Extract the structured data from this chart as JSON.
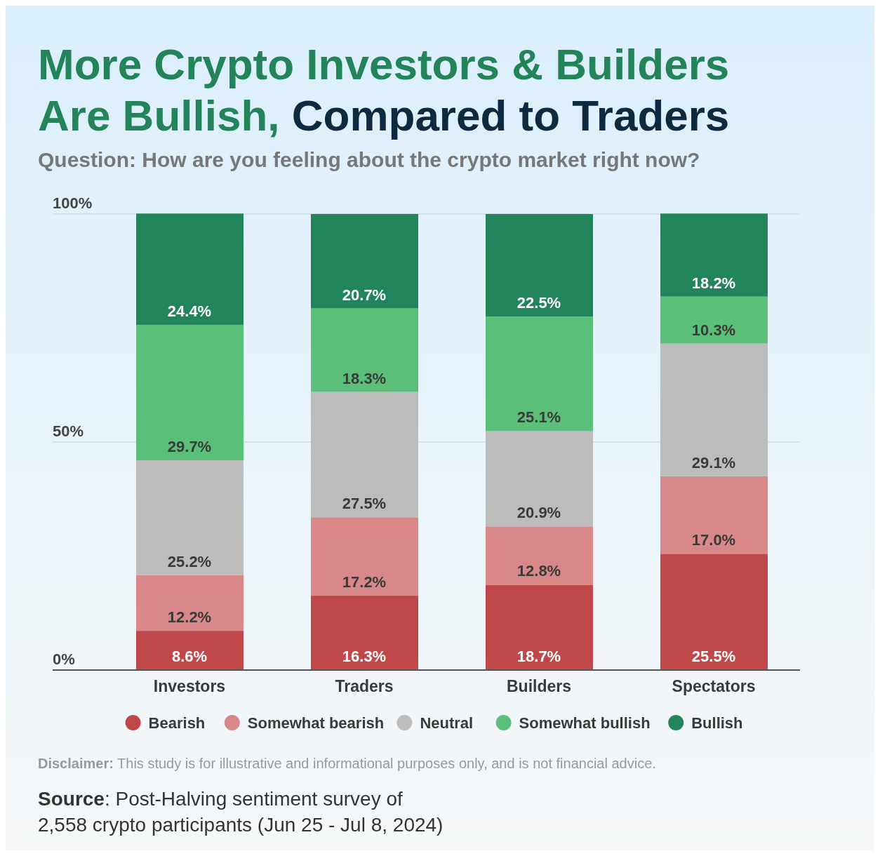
{
  "chart_data": {
    "type": "bar",
    "stacked": true,
    "title": "More Crypto Investors & Builders Are Bullish, Compared to Traders",
    "subtitle": "Question: How are you feeling about the crypto market right now?",
    "categories": [
      "Investors",
      "Traders",
      "Builders",
      "Spectators"
    ],
    "series": [
      {
        "name": "Bearish",
        "color": "#c0474a",
        "values": [
          8.6,
          16.3,
          18.7,
          25.5
        ],
        "value_labels": [
          "8.6%",
          "16.3%",
          "18.7%",
          "25.5%"
        ]
      },
      {
        "name": "Somewhat bearish",
        "color": "#d98889",
        "values": [
          12.2,
          17.2,
          12.8,
          17.0
        ],
        "value_labels": [
          "12.2%",
          "17.2%",
          "12.8%",
          "17.0%"
        ]
      },
      {
        "name": "Neutral",
        "color": "#bcbcbc",
        "values": [
          25.2,
          27.5,
          20.9,
          29.1
        ],
        "value_labels": [
          "25.2%",
          "27.5%",
          "20.9%",
          "29.1%"
        ]
      },
      {
        "name": "Somewhat bullish",
        "color": "#5bbf7a",
        "values": [
          29.7,
          18.3,
          25.1,
          10.3
        ],
        "value_labels": [
          "29.7%",
          "18.3%",
          "25.1%",
          "10.3%"
        ]
      },
      {
        "name": "Bullish",
        "color": "#22845a",
        "values": [
          24.4,
          20.7,
          22.5,
          18.2
        ],
        "value_labels": [
          "24.4%",
          "20.7%",
          "22.5%",
          "18.2%"
        ]
      }
    ],
    "ylim": [
      0,
      100
    ],
    "yticks": [
      {
        "value": 0,
        "label": "0%"
      },
      {
        "value": 50,
        "label": "50%"
      },
      {
        "value": 100,
        "label": "100%"
      }
    ],
    "grid": "y",
    "legend": "bottom",
    "annotations": [
      "Disclaimer: This study is for illustrative and informational purposes only, and is not financial advice.",
      "Source: Post-Halving sentiment survey of 2,558 crypto participants (Jun 25 - Jul 8, 2024)"
    ]
  }
}
